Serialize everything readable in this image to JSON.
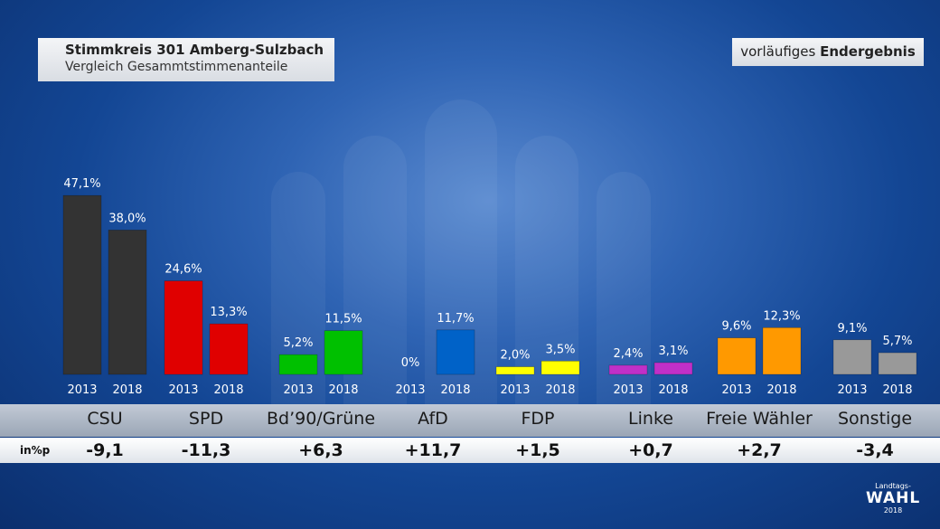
{
  "header": {
    "title": "Stimmkreis 301 Amberg-Sulzbach",
    "subtitle": "Vergleich Gesammtstimmenanteile",
    "status_prefix": "vorläufiges",
    "status_bold": "Endergebnis"
  },
  "diff": {
    "unit_label": "in%p",
    "values": [
      "-9,1",
      "-11,3",
      "+6,3",
      "+11,7",
      "+1,5",
      "+0,7",
      "+2,7",
      "-3,4"
    ]
  },
  "logo": {
    "line1": "Landtags-",
    "line2": "WAHL",
    "line3": "2018"
  },
  "chart_data": {
    "type": "bar",
    "categories": [
      "CSU",
      "SPD",
      "Bd’90/Grüne",
      "AfD",
      "FDP",
      "Linke",
      "Freie Wähler",
      "Sonstige"
    ],
    "series": [
      {
        "name": "2013",
        "values": [
          47.1,
          24.6,
          5.2,
          0,
          2.0,
          2.4,
          9.6,
          9.1
        ],
        "labels": [
          "47,1%",
          "24,6%",
          "5,2%",
          "0%",
          "2,0%",
          "2,4%",
          "9,6%",
          "9,1%"
        ]
      },
      {
        "name": "2018",
        "values": [
          38.0,
          13.3,
          11.5,
          11.7,
          3.5,
          3.1,
          12.3,
          5.7
        ],
        "labels": [
          "38,0%",
          "13,3%",
          "11,5%",
          "11,7%",
          "3,5%",
          "3,1%",
          "12,3%",
          "5,7%"
        ]
      }
    ],
    "colors": [
      "#333333",
      "#e00000",
      "#00c000",
      "#0062c8",
      "#ffff00",
      "#c030c8",
      "#ff9900",
      "#999999"
    ],
    "ylim": [
      0,
      50
    ],
    "grid": false,
    "legend": "none"
  }
}
